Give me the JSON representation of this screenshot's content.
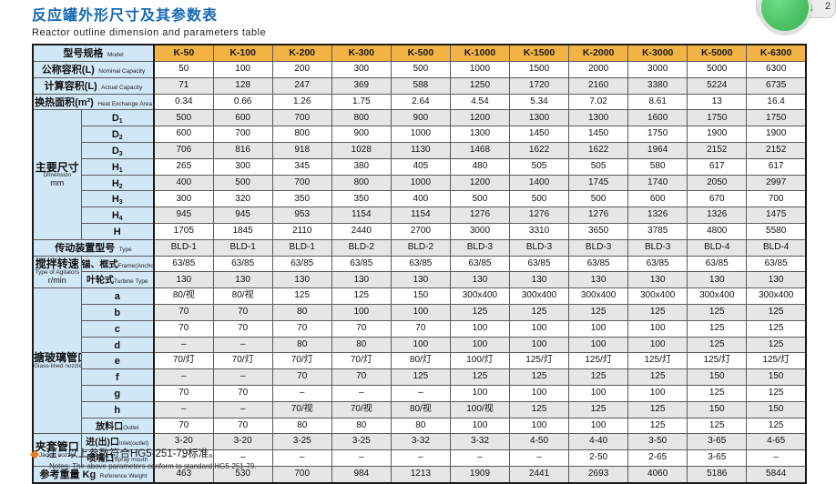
{
  "header": {
    "title_zh": "反应罐外形尺寸及其参数表",
    "title_en": "Reactor outline dimension and parameters table"
  },
  "widget": {
    "arrow": "↓",
    "count": "2"
  },
  "colors": {
    "accent_blue": "#1668b3",
    "header_amber": "#f3b344",
    "label_blue": "#d2e7f6",
    "stripe_gray": "#e6e6e6",
    "note_orange": "#e87a1e",
    "green_button": "#45bd60"
  },
  "table": {
    "model_label_zh": "型号规格",
    "model_label_en": "Model",
    "columns": [
      "K-50",
      "K-100",
      "K-200",
      "K-300",
      "K-500",
      "K-1000",
      "K-1500",
      "K-2000",
      "K-3000",
      "K-5000",
      "K-6300"
    ],
    "sections": [
      {
        "type": "rows",
        "rows": [
          {
            "zh": "公称容积(L)",
            "en": "Nominal Capacity",
            "values": [
              "50",
              "100",
              "200",
              "300",
              "500",
              "1000",
              "1500",
              "2000",
              "3000",
              "5000",
              "6300"
            ]
          },
          {
            "zh": "计算容积(L)",
            "en": "Actual Capacity",
            "values": [
              "71",
              "128",
              "247",
              "369",
              "588",
              "1250",
              "1720",
              "2160",
              "3380",
              "5224",
              "6735"
            ]
          },
          {
            "zh": "换热面积(m²)",
            "en": "Heat Exchange Area",
            "values": [
              "0.34",
              "0.66",
              "1.26",
              "1.75",
              "2.64",
              "4.54",
              "5.34",
              "7.02",
              "8.61",
              "13",
              "16.4"
            ]
          }
        ]
      },
      {
        "type": "group",
        "zh": "主要尺寸",
        "en": "Dimension",
        "en2": "mm",
        "rows": [
          {
            "sub": "D1",
            "values": [
              "500",
              "600",
              "700",
              "800",
              "900",
              "1200",
              "1300",
              "1300",
              "1600",
              "1750",
              "1750"
            ]
          },
          {
            "sub": "D2",
            "values": [
              "600",
              "700",
              "800",
              "900",
              "1000",
              "1300",
              "1450",
              "1450",
              "1750",
              "1900",
              "1900"
            ]
          },
          {
            "sub": "D3",
            "values": [
              "706",
              "816",
              "918",
              "1028",
              "1130",
              "1468",
              "1622",
              "1622",
              "1964",
              "2152",
              "2152"
            ]
          },
          {
            "sub": "H1",
            "values": [
              "265",
              "300",
              "345",
              "380",
              "405",
              "480",
              "505",
              "505",
              "580",
              "617",
              "617"
            ]
          },
          {
            "sub": "H2",
            "values": [
              "400",
              "500",
              "700",
              "800",
              "1000",
              "1200",
              "1400",
              "1745",
              "1740",
              "2050",
              "2997"
            ]
          },
          {
            "sub": "H3",
            "values": [
              "300",
              "320",
              "350",
              "350",
              "400",
              "500",
              "500",
              "500",
              "600",
              "670",
              "700"
            ]
          },
          {
            "sub": "H4",
            "values": [
              "945",
              "945",
              "953",
              "1154",
              "1154",
              "1276",
              "1276",
              "1276",
              "1326",
              "1326",
              "1475"
            ]
          },
          {
            "sub": "H",
            "values": [
              "1705",
              "1845",
              "2110",
              "2440",
              "2700",
              "3000",
              "3310",
              "3650",
              "3785",
              "4800",
              "5580"
            ]
          }
        ]
      },
      {
        "type": "rows",
        "rows": [
          {
            "zh": "传动装置型号",
            "en": "Type",
            "values": [
              "BLD-1",
              "BLD-1",
              "BLD-1",
              "BLD-2",
              "BLD-2",
              "BLD-3",
              "BLD-3",
              "BLD-3",
              "BLD-3",
              "BLD-4",
              "BLD-4"
            ]
          }
        ]
      },
      {
        "type": "group",
        "zh": "搅拌转速",
        "en": "Type of Agitators",
        "en2": "r/min",
        "rows": [
          {
            "sub_zh": "锚、框式",
            "sub_en": "Frame(Anchor)Type",
            "values": [
              "63/85",
              "63/85",
              "63/85",
              "63/85",
              "63/85",
              "63/85",
              "63/85",
              "63/85",
              "63/85",
              "63/85",
              "63/85"
            ]
          },
          {
            "sub_zh": "叶轮式",
            "sub_en": "Turbine Type",
            "values": [
              "130",
              "130",
              "130",
              "130",
              "130",
              "130",
              "130",
              "130",
              "130",
              "130",
              "130"
            ]
          }
        ]
      },
      {
        "type": "group",
        "zh": "搪玻璃管口",
        "en": "Glass-lined nozzle",
        "en2": "",
        "rows": [
          {
            "sub": "a",
            "values": [
              "80/视",
              "80/视",
              "125",
              "125",
              "150",
              "300x400",
              "300x400",
              "300x400",
              "300x400",
              "300x400",
              "300x400"
            ]
          },
          {
            "sub": "b",
            "values": [
              "70",
              "70",
              "80",
              "100",
              "100",
              "125",
              "125",
              "125",
              "125",
              "125",
              "125"
            ]
          },
          {
            "sub": "c",
            "values": [
              "70",
              "70",
              "70",
              "70",
              "70",
              "100",
              "100",
              "100",
              "100",
              "125",
              "125"
            ]
          },
          {
            "sub": "d",
            "values": [
              "–",
              "–",
              "80",
              "80",
              "100",
              "100",
              "100",
              "100",
              "100",
              "125",
              "125"
            ]
          },
          {
            "sub": "e",
            "values": [
              "70/灯",
              "70/灯",
              "70/灯",
              "70/灯",
              "80/灯",
              "100/灯",
              "125/灯",
              "125/灯",
              "125/灯",
              "125/灯",
              "125/灯"
            ]
          },
          {
            "sub": "f",
            "values": [
              "–",
              "–",
              "70",
              "70",
              "125",
              "125",
              "125",
              "125",
              "125",
              "150",
              "150"
            ]
          },
          {
            "sub": "g",
            "values": [
              "70",
              "70",
              "–",
              "–",
              "–",
              "100",
              "100",
              "100",
              "100",
              "125",
              "125"
            ]
          },
          {
            "sub": "h",
            "values": [
              "–",
              "–",
              "70/视",
              "70/视",
              "80/视",
              "100/视",
              "125",
              "125",
              "125",
              "150",
              "150"
            ]
          },
          {
            "sub_zh": "放料口",
            "sub_en": "Outlet",
            "values": [
              "70",
              "70",
              "80",
              "80",
              "80",
              "100",
              "100",
              "100",
              "125",
              "125",
              "125"
            ]
          }
        ]
      },
      {
        "type": "group",
        "zh": "夹套管口",
        "en": "Jacket nozzle",
        "en2": "",
        "rows": [
          {
            "sub_zh": "进(出)口",
            "sub_en": "Inlet(outlet)",
            "values": [
              "3-20",
              "3-20",
              "3-25",
              "3-25",
              "3-32",
              "3-32",
              "4-50",
              "4-40",
              "3-50",
              "3-65",
              "4-65"
            ]
          },
          {
            "sub_zh": "喷嘴口",
            "sub_en": "Spray mouth",
            "values": [
              "–",
              "–",
              "–",
              "–",
              "–",
              "–",
              "–",
              "2-50",
              "2-65",
              "3-65",
              "–"
            ]
          }
        ]
      },
      {
        "type": "rows",
        "rows": [
          {
            "zh": "参考重量 Kg",
            "en": "Reference Weight",
            "values": [
              "463",
              "530",
              "700",
              "984",
              "1213",
              "1909",
              "2441",
              "2693",
              "4060",
              "5186",
              "5844"
            ]
          }
        ]
      }
    ]
  },
  "note": {
    "diamond": "◆",
    "zh": "注：以上参数符合HG5-251-79标准。",
    "en": "Notes: The above parameters conform to standard HG5-251-79."
  }
}
